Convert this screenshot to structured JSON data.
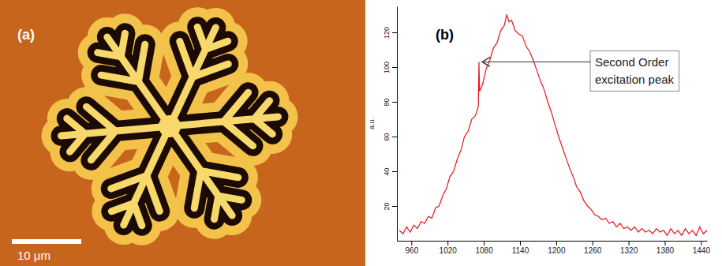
{
  "chart_data": [
    {
      "type": "image",
      "label": "(a)",
      "annotations": [
        {
          "text": "10 µm"
        }
      ]
    },
    {
      "type": "line",
      "label": "(b)",
      "y_label": "a.u.",
      "color": "#e8141c",
      "x": [
        940,
        946,
        952,
        958,
        964,
        970,
        976,
        982,
        988,
        994,
        1000,
        1006,
        1012,
        1018,
        1024,
        1030,
        1036,
        1042,
        1048,
        1054,
        1060,
        1066,
        1070,
        1071,
        1072,
        1073,
        1078,
        1084,
        1090,
        1096,
        1102,
        1108,
        1114,
        1118,
        1122,
        1126,
        1132,
        1138,
        1144,
        1150,
        1156,
        1162,
        1168,
        1174,
        1180,
        1186,
        1192,
        1198,
        1204,
        1210,
        1216,
        1222,
        1228,
        1234,
        1240,
        1246,
        1252,
        1258,
        1264,
        1270,
        1276,
        1282,
        1288,
        1294,
        1300,
        1306,
        1312,
        1318,
        1324,
        1330,
        1336,
        1342,
        1348,
        1354,
        1360,
        1366,
        1372,
        1378,
        1384,
        1390,
        1396,
        1402,
        1408,
        1414,
        1420,
        1426,
        1432,
        1438,
        1444,
        1450
      ],
      "values": [
        6,
        4,
        8,
        5,
        9,
        7,
        11,
        10,
        14,
        13,
        19,
        20,
        26,
        30,
        37,
        40,
        47,
        52,
        60,
        63,
        70,
        72,
        76,
        78,
        103,
        86,
        90,
        99,
        104,
        111,
        114,
        121,
        124,
        130,
        126,
        127,
        121,
        119,
        118,
        112,
        109,
        104,
        98,
        92,
        87,
        80,
        74,
        67,
        60,
        54,
        48,
        42,
        37,
        31,
        28,
        23,
        20,
        18,
        15,
        14,
        12,
        13,
        10,
        11,
        8,
        10,
        7,
        8,
        6,
        8,
        5,
        7,
        5,
        6,
        4,
        7,
        5,
        6,
        3,
        7,
        4,
        6,
        3,
        7,
        4,
        6,
        3,
        8,
        4,
        6
      ],
      "xlim": [
        936,
        1450
      ],
      "xticks": [
        960,
        1020,
        1080,
        1140,
        1200,
        1260,
        1320,
        1380,
        1440
      ],
      "ylim": [
        0,
        135
      ],
      "yticks": [
        20,
        40,
        60,
        80,
        100,
        120
      ],
      "annotations": [
        {
          "text": "Second Order excitation peak",
          "x": 1072,
          "y": 103
        }
      ]
    }
  ]
}
